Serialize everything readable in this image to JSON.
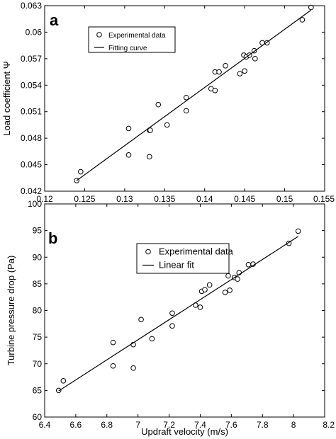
{
  "chart_data": [
    {
      "type": "scatter",
      "panel_label": "a",
      "xlabel": "Flow coefficient Φ",
      "ylabel": "Load coefficient Ψ",
      "xlim": [
        0.12,
        0.155
      ],
      "ylim": [
        0.042,
        0.063
      ],
      "xticks": [
        "0.12",
        "0.125",
        "0.13",
        "0.135",
        "0.14",
        "0.145",
        "0.15",
        "0.155"
      ],
      "yticks": [
        "0.042",
        "0.045",
        "0.048",
        "0.051",
        "0.054",
        "0.057",
        "0.06",
        "0.063"
      ],
      "grid": false,
      "legend_position": "top-left",
      "series": [
        {
          "name": "Experimental data",
          "kind": "markers",
          "x": [
            0.124,
            0.1245,
            0.1305,
            0.1305,
            0.1331,
            0.1331,
            0.1332,
            0.1342,
            0.1353,
            0.1377,
            0.1377,
            0.1408,
            0.1413,
            0.1413,
            0.1418,
            0.1426,
            0.1444,
            0.1449,
            0.145,
            0.1452,
            0.1456,
            0.1462,
            0.1463,
            0.1472,
            0.1478,
            0.1522,
            0.1533
          ],
          "y": [
            0.0432,
            0.0442,
            0.0491,
            0.0461,
            0.0489,
            0.0459,
            0.0489,
            0.0518,
            0.0495,
            0.0526,
            0.0511,
            0.0536,
            0.0555,
            0.0534,
            0.0555,
            0.0562,
            0.0553,
            0.0574,
            0.0556,
            0.0572,
            0.0574,
            0.0579,
            0.057,
            0.0588,
            0.0588,
            0.0614,
            0.0628
          ]
        },
        {
          "name": "Fitting curve",
          "kind": "line",
          "x": [
            0.124,
            0.1533
          ],
          "y": [
            0.0432,
            0.0625
          ]
        }
      ]
    },
    {
      "type": "scatter",
      "panel_label": "b",
      "xlabel": "Updraft velocity (m/s)",
      "ylabel": "Turbine pressure drop (Pa)",
      "xlim": [
        6.4,
        8.2
      ],
      "ylim": [
        60,
        100
      ],
      "xticks": [
        "6.4",
        "6.6",
        "6.8",
        "7",
        "7.2",
        "7.4",
        "7.6",
        "7.8",
        "8",
        "8.2"
      ],
      "yticks": [
        "60",
        "65",
        "70",
        "75",
        "80",
        "85",
        "90",
        "95",
        "100"
      ],
      "grid": false,
      "legend_position": "top-left",
      "series": [
        {
          "name": "Experimental data",
          "kind": "markers",
          "x": [
            6.49,
            6.52,
            6.84,
            6.84,
            6.97,
            6.97,
            7.02,
            7.09,
            7.22,
            7.22,
            7.37,
            7.4,
            7.41,
            7.43,
            7.46,
            7.56,
            7.58,
            7.59,
            7.62,
            7.64,
            7.65,
            7.71,
            7.74,
            7.97,
            8.03
          ],
          "y": [
            65.0,
            66.8,
            74.0,
            69.6,
            73.6,
            69.2,
            78.3,
            74.7,
            79.5,
            77.1,
            81.0,
            80.6,
            83.6,
            83.9,
            84.8,
            83.4,
            86.5,
            83.8,
            86.2,
            85.9,
            87.1,
            88.6,
            88.7,
            92.6,
            94.9
          ]
        },
        {
          "name": "Linear fit",
          "kind": "line",
          "x": [
            6.49,
            8.03
          ],
          "y": [
            64.9,
            93.9
          ]
        }
      ]
    }
  ]
}
